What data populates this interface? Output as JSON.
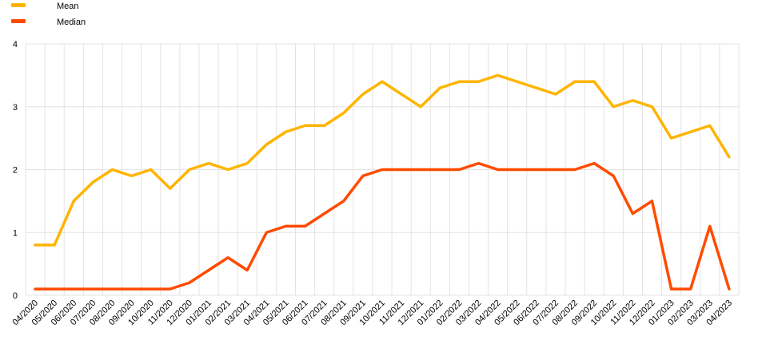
{
  "chart_data": {
    "type": "line",
    "title": "",
    "xlabel": "",
    "ylabel": "",
    "ylim": [
      0,
      4
    ],
    "y_ticks": [
      "0",
      "1",
      "2",
      "3",
      "4"
    ],
    "grid": true,
    "legend_position": "top-left",
    "categories": [
      "04/2020",
      "05/2020",
      "06/2020",
      "07/2020",
      "08/2020",
      "09/2020",
      "10/2020",
      "11/2020",
      "12/2020",
      "01/2021",
      "02/2021",
      "03/2021",
      "04/2021",
      "05/2021",
      "06/2021",
      "07/2021",
      "08/2021",
      "09/2021",
      "10/2021",
      "11/2021",
      "12/2021",
      "01/2022",
      "02/2022",
      "03/2022",
      "04/2022",
      "05/2022",
      "06/2022",
      "07/2022",
      "08/2022",
      "09/2022",
      "10/2022",
      "11/2022",
      "12/2022",
      "01/2023",
      "02/2023",
      "03/2023",
      "04/2023"
    ],
    "series": [
      {
        "name": "Mean",
        "color": "#FFB400",
        "values": [
          0.8,
          0.8,
          1.5,
          1.8,
          2.0,
          1.9,
          2.0,
          1.7,
          2.0,
          2.1,
          2.0,
          2.1,
          2.4,
          2.6,
          2.7,
          2.7,
          2.9,
          3.2,
          3.4,
          3.2,
          3.0,
          3.3,
          3.4,
          3.4,
          3.5,
          3.4,
          3.3,
          3.2,
          3.4,
          3.4,
          3.0,
          3.1,
          3.0,
          2.5,
          2.6,
          2.7,
          2.2
        ]
      },
      {
        "name": "Median",
        "color": "#FF4B00",
        "values": [
          0.1,
          0.1,
          0.1,
          0.1,
          0.1,
          0.1,
          0.1,
          0.1,
          0.2,
          0.4,
          0.6,
          0.4,
          1.0,
          1.1,
          1.1,
          1.3,
          1.5,
          1.9,
          2.0,
          2.0,
          2.0,
          2.0,
          2.0,
          2.1,
          2.0,
          2.0,
          2.0,
          2.0,
          2.0,
          2.1,
          1.9,
          1.3,
          1.5,
          0.1,
          0.1,
          1.1,
          0.1
        ]
      }
    ]
  }
}
